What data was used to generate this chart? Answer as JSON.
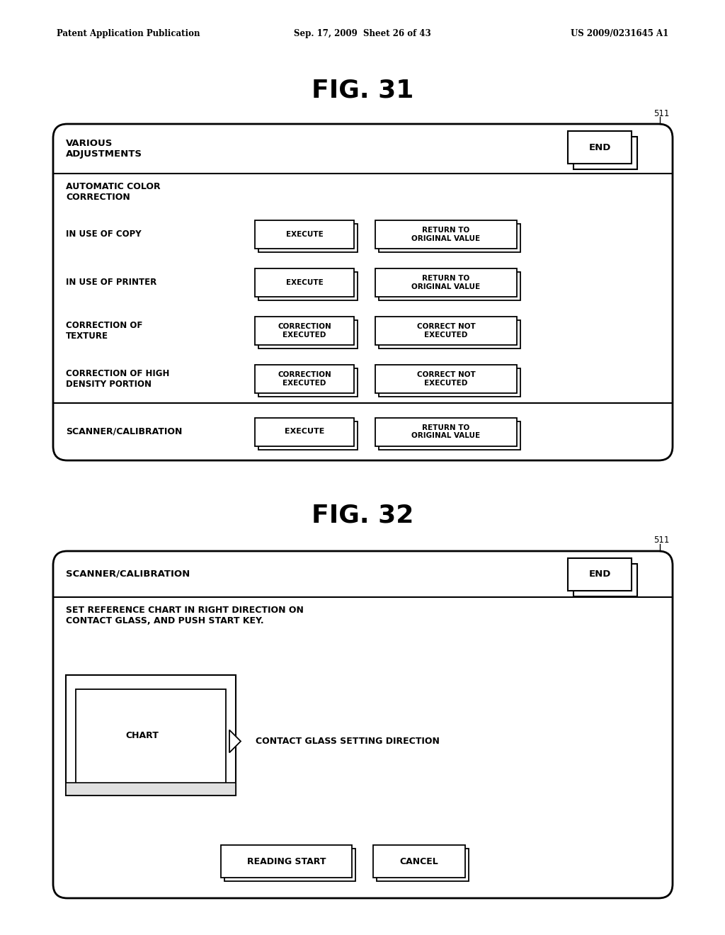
{
  "bg_color": "#ffffff",
  "header_text_left": "Patent Application Publication",
  "header_text_mid": "Sep. 17, 2009  Sheet 26 of 43",
  "header_text_right": "US 2009/0231645 A1",
  "fig31_title": "FIG. 31",
  "fig32_title": "FIG. 32",
  "label_511": "511",
  "fig31": {
    "header_label": "VARIOUS\nADJUSTMENTS",
    "end_btn": "END",
    "section_label": "AUTOMATIC COLOR\nCORRECTION",
    "rows": [
      {
        "label": "IN USE OF COPY",
        "btn1": "EXECUTE",
        "btn2": "RETURN TO\nORIGINAL VALUE"
      },
      {
        "label": "IN USE OF PRINTER",
        "btn1": "EXECUTE",
        "btn2": "RETURN TO\nORIGINAL VALUE"
      },
      {
        "label": "CORRECTION OF\nTEXTURE",
        "btn1": "CORRECTION\nEXECUTED",
        "btn2": "CORRECT NOT\nEXECUTED"
      },
      {
        "label": "CORRECTION OF HIGH\nDENSITY PORTION",
        "btn1": "CORRECTION\nEXECUTED",
        "btn2": "CORRECT NOT\nEXECUTED"
      }
    ],
    "scanner_label": "SCANNER/CALIBRATION",
    "scanner_btn1": "EXECUTE",
    "scanner_btn2": "RETURN TO\nORIGINAL VALUE"
  },
  "fig32": {
    "header_label": "SCANNER/CALIBRATION",
    "end_btn": "END",
    "instruction": "SET REFERENCE CHART IN RIGHT DIRECTION ON\nCONTACT GLASS, AND PUSH START KEY.",
    "chart_label": "CHART",
    "arrow_label": "CONTACT GLASS SETTING DIRECTION",
    "btn_reading": "READING START",
    "btn_cancel": "CANCEL"
  }
}
